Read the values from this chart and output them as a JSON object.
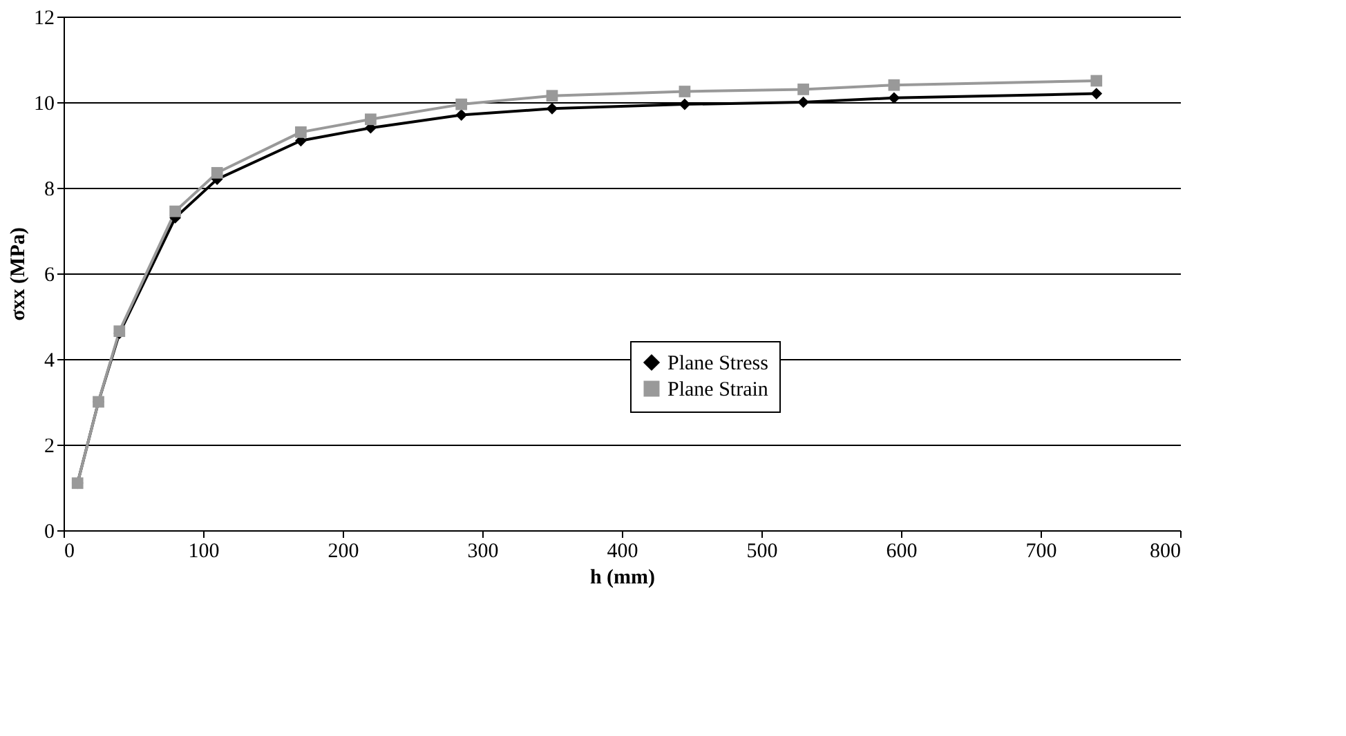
{
  "chart_data": {
    "type": "line",
    "xlabel": "h (mm)",
    "ylabel": "σxx (MPa)",
    "x": [
      10,
      25,
      40,
      80,
      110,
      170,
      220,
      285,
      350,
      445,
      530,
      595,
      740
    ],
    "series": [
      {
        "name": "Plane Stress",
        "color": "#000000",
        "marker": "diamond",
        "values": [
          1.1,
          3.0,
          4.6,
          7.3,
          8.2,
          9.1,
          9.4,
          9.7,
          9.85,
          9.95,
          10.0,
          10.1,
          10.2
        ]
      },
      {
        "name": "Plane Strain",
        "color": "#999999",
        "marker": "square",
        "values": [
          1.1,
          3.0,
          4.65,
          7.45,
          8.35,
          9.3,
          9.6,
          9.95,
          10.15,
          10.25,
          10.3,
          10.4,
          10.5
        ]
      }
    ],
    "xlim": [
      0,
      800
    ],
    "xticks": [
      0,
      100,
      200,
      300,
      400,
      500,
      600,
      700,
      800
    ],
    "ylim": [
      0,
      12
    ],
    "yticks": [
      0,
      2,
      4,
      6,
      8,
      10,
      12
    ],
    "grid": "y",
    "legend": "center",
    "line_style": "solid"
  }
}
